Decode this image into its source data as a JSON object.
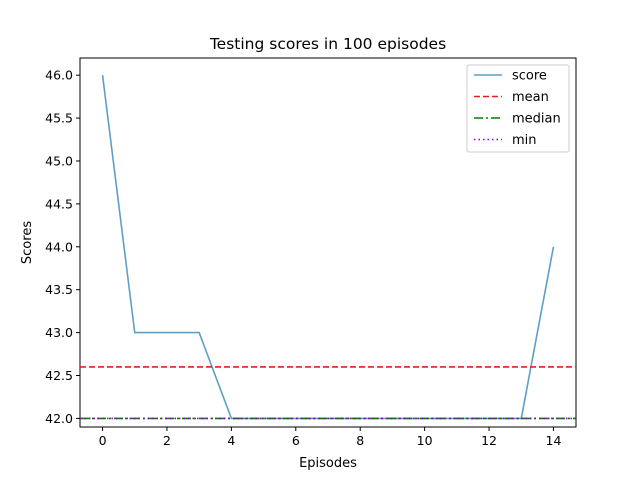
{
  "chart_data": {
    "type": "line",
    "title": "Testing scores in 100 episodes",
    "xlabel": "Episodes",
    "ylabel": "Scores",
    "xlim": [
      -0.7,
      14.7
    ],
    "ylim": [
      41.9,
      46.2
    ],
    "xticks": [
      0,
      2,
      4,
      6,
      8,
      10,
      12,
      14
    ],
    "yticks": [
      42.0,
      42.5,
      43.0,
      43.5,
      44.0,
      44.5,
      45.0,
      45.5,
      46.0
    ],
    "grid": false,
    "legend_position": "top-right",
    "series": [
      {
        "name": "score",
        "kind": "line",
        "color": "#5f9ec6",
        "style": "solid",
        "x": [
          0,
          1,
          2,
          3,
          4,
          5,
          6,
          7,
          8,
          9,
          10,
          11,
          12,
          13,
          14
        ],
        "values": [
          46,
          43,
          43,
          43,
          42,
          42,
          42,
          42,
          42,
          42,
          42,
          42,
          42,
          42,
          44
        ]
      },
      {
        "name": "mean",
        "kind": "hline",
        "color": "#e3201b",
        "style": "dashed",
        "value": 42.6
      },
      {
        "name": "median",
        "kind": "hline",
        "color": "#008000",
        "style": "dashdot",
        "value": 42.0
      },
      {
        "name": "min",
        "kind": "hline",
        "color": "#9400d3",
        "style": "dotted",
        "value": 42.0
      }
    ]
  }
}
